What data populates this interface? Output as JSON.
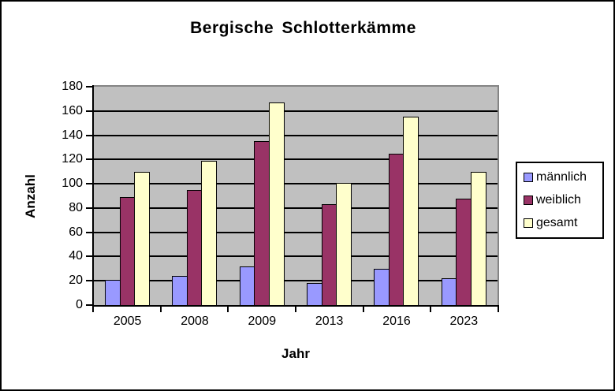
{
  "window": {
    "background": "#FFFFFF",
    "border_color": "#000000"
  },
  "chart_data": {
    "type": "bar",
    "title": "Bergische Schlotterkämme",
    "xlabel": "Jahr",
    "ylabel": "Anzahl",
    "ylim": [
      0,
      180
    ],
    "ytick_step": 20,
    "ytick_labels": [
      "0",
      "20",
      "40",
      "60",
      "80",
      "100",
      "120",
      "140",
      "160",
      "180"
    ],
    "categories": [
      "2005",
      "2008",
      "2009",
      "2013",
      "2016",
      "2023"
    ],
    "series": [
      {
        "name": "männlich",
        "color": "#9999FF",
        "values": [
          21,
          24,
          32,
          18,
          30,
          22
        ]
      },
      {
        "name": "weiblich",
        "color": "#993366",
        "values": [
          89,
          95,
          135,
          83,
          125,
          88
        ]
      },
      {
        "name": "gesamt",
        "color": "#FFFFCC",
        "values": [
          110,
          119,
          167,
          101,
          155,
          110
        ]
      }
    ],
    "grid": true,
    "legend_position": "right",
    "plot_background": "#C0C0C0",
    "gridline_color": "#000000",
    "plot_border_color": "#848484",
    "axis_color": "#000000"
  }
}
